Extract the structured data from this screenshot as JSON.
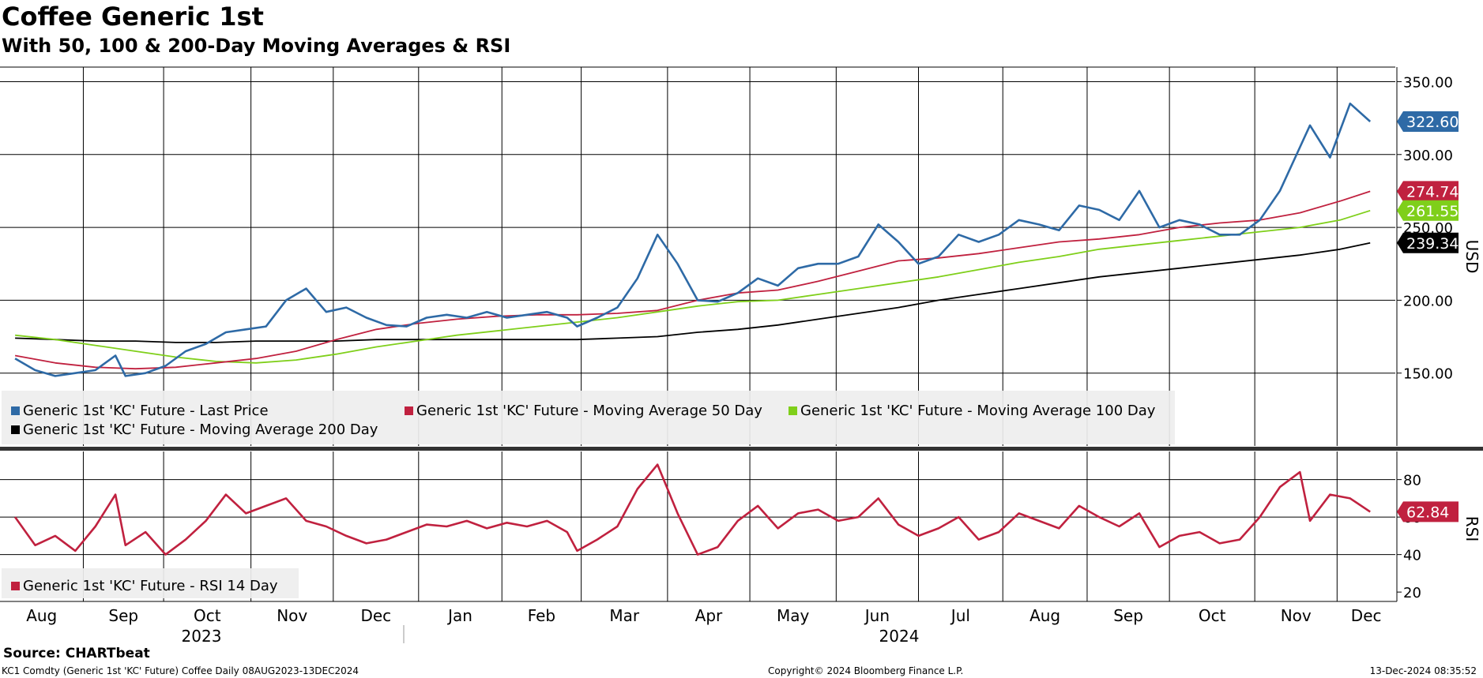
{
  "header": {
    "title": "Coffee Generic 1st",
    "subtitle": "With 50, 100 & 200-Day Moving Averages & RSI"
  },
  "footer": {
    "source": "Source: CHARTbeat",
    "ticker_line": "KC1 Comdty (Generic 1st 'KC' Future) Coffee  Daily 08AUG2023-13DEC2024",
    "copyright": "Copyright© 2024 Bloomberg Finance L.P.",
    "timestamp": "13-Dec-2024 08:35:52"
  },
  "colors": {
    "last_price": "#2e6aa6",
    "ma50": "#c0213f",
    "ma100": "#7fcf1a",
    "ma200": "#000000",
    "rsi": "#c0213f",
    "legend_bg": "#eeeeee"
  },
  "chart_data": [
    {
      "type": "line",
      "panel": "price",
      "ylabel": "USD",
      "ylim": [
        100,
        360
      ],
      "yticks": [
        "350.00",
        "300.00",
        "250.00",
        "200.00",
        "150.00"
      ],
      "ytick_values": [
        350,
        300,
        250,
        200,
        150
      ],
      "x_months": [
        "Aug",
        "Sep",
        "Oct",
        "Nov",
        "Dec",
        "Jan",
        "Feb",
        "Mar",
        "Apr",
        "May",
        "Jun",
        "Jul",
        "Aug",
        "Sep",
        "Oct",
        "Nov",
        "Dec"
      ],
      "x_years": [
        "2023",
        "2024"
      ],
      "grid": true,
      "series": [
        {
          "name": "Generic 1st 'KC' Future - Last Price",
          "color_key": "last_price",
          "last_label": "322.60",
          "x": [
            2023.6,
            2023.62,
            2023.64,
            2023.66,
            2023.68,
            2023.7,
            2023.71,
            2023.73,
            2023.75,
            2023.77,
            2023.79,
            2023.81,
            2023.83,
            2023.85,
            2023.87,
            2023.89,
            2023.91,
            2023.93,
            2023.95,
            2023.97,
            2023.99,
            2024.01,
            2024.03,
            2024.05,
            2024.07,
            2024.09,
            2024.11,
            2024.13,
            2024.15,
            2024.16,
            2024.18,
            2024.2,
            2024.22,
            2024.24,
            2024.26,
            2024.28,
            2024.3,
            2024.32,
            2024.34,
            2024.36,
            2024.38,
            2024.4,
            2024.42,
            2024.44,
            2024.46,
            2024.48,
            2024.5,
            2024.52,
            2024.54,
            2024.56,
            2024.58,
            2024.6,
            2024.62,
            2024.64,
            2024.66,
            2024.68,
            2024.7,
            2024.72,
            2024.74,
            2024.76,
            2024.78,
            2024.8,
            2024.82,
            2024.84,
            2024.86,
            2024.88,
            2024.89,
            2024.91,
            2024.93,
            2024.95
          ],
          "values": [
            160,
            152,
            148,
            150,
            152,
            162,
            148,
            150,
            155,
            165,
            170,
            178,
            180,
            182,
            200,
            208,
            192,
            195,
            188,
            183,
            182,
            188,
            190,
            188,
            192,
            188,
            190,
            192,
            188,
            182,
            188,
            195,
            215,
            245,
            225,
            200,
            199,
            205,
            215,
            210,
            222,
            225,
            225,
            230,
            252,
            240,
            225,
            230,
            245,
            240,
            245,
            255,
            252,
            248,
            265,
            262,
            255,
            275,
            250,
            255,
            252,
            245,
            245,
            255,
            275,
            305,
            320,
            298,
            335,
            322.6
          ]
        },
        {
          "name": "Generic 1st 'KC' Future - Moving Average 50 Day",
          "color_key": "ma50",
          "last_label": "274.74",
          "x": [
            2023.6,
            2023.64,
            2023.68,
            2023.72,
            2023.76,
            2023.8,
            2023.84,
            2023.88,
            2023.92,
            2023.96,
            2024.0,
            2024.04,
            2024.08,
            2024.12,
            2024.16,
            2024.2,
            2024.24,
            2024.28,
            2024.32,
            2024.36,
            2024.4,
            2024.44,
            2024.48,
            2024.52,
            2024.56,
            2024.6,
            2024.64,
            2024.68,
            2024.72,
            2024.76,
            2024.8,
            2024.84,
            2024.88,
            2024.92,
            2024.95
          ],
          "values": [
            162,
            157,
            154,
            153,
            154,
            157,
            160,
            165,
            173,
            180,
            184,
            187,
            189,
            190,
            190,
            191,
            193,
            200,
            205,
            207,
            213,
            220,
            227,
            229,
            232,
            236,
            240,
            242,
            245,
            250,
            253,
            255,
            260,
            268,
            274.74
          ]
        },
        {
          "name": "Generic 1st 'KC' Future - Moving Average 100 Day",
          "color_key": "ma100",
          "last_label": "261.55",
          "x": [
            2023.6,
            2023.64,
            2023.68,
            2023.72,
            2023.76,
            2023.8,
            2023.84,
            2023.88,
            2023.92,
            2023.96,
            2024.0,
            2024.04,
            2024.08,
            2024.12,
            2024.16,
            2024.2,
            2024.24,
            2024.28,
            2024.32,
            2024.36,
            2024.4,
            2024.44,
            2024.48,
            2024.52,
            2024.56,
            2024.6,
            2024.64,
            2024.68,
            2024.72,
            2024.76,
            2024.8,
            2024.84,
            2024.88,
            2024.92,
            2024.95
          ],
          "values": [
            176,
            173,
            169,
            165,
            161,
            158,
            157,
            159,
            163,
            168,
            172,
            176,
            179,
            182,
            185,
            188,
            192,
            196,
            199,
            200,
            204,
            208,
            212,
            216,
            221,
            226,
            230,
            235,
            238,
            241,
            244,
            247,
            250,
            255,
            261.55
          ]
        },
        {
          "name": "Generic 1st 'KC' Future - Moving Average 200 Day",
          "color_key": "ma200",
          "last_label": "239.34",
          "x": [
            2023.6,
            2023.64,
            2023.68,
            2023.72,
            2023.76,
            2023.8,
            2023.84,
            2023.88,
            2023.92,
            2023.96,
            2024.0,
            2024.04,
            2024.08,
            2024.12,
            2024.16,
            2024.2,
            2024.24,
            2024.28,
            2024.32,
            2024.36,
            2024.4,
            2024.44,
            2024.48,
            2024.52,
            2024.56,
            2024.6,
            2024.64,
            2024.68,
            2024.72,
            2024.76,
            2024.8,
            2024.84,
            2024.88,
            2024.92,
            2024.95
          ],
          "values": [
            174,
            173,
            172,
            172,
            171,
            171,
            172,
            172,
            172,
            173,
            173,
            173,
            173,
            173,
            173,
            174,
            175,
            178,
            180,
            183,
            187,
            191,
            195,
            200,
            204,
            208,
            212,
            216,
            219,
            222,
            225,
            228,
            231,
            235,
            239.34
          ]
        }
      ]
    },
    {
      "type": "line",
      "panel": "rsi",
      "ylabel": "RSI",
      "ylim": [
        15,
        95
      ],
      "yticks": [
        "80",
        "60",
        "40",
        "20"
      ],
      "ytick_values": [
        80,
        60,
        40,
        20
      ],
      "grid": true,
      "series": [
        {
          "name": "Generic 1st 'KC' Future - RSI 14 Day",
          "color_key": "rsi",
          "last_label": "62.84",
          "x": [
            2023.6,
            2023.62,
            2023.64,
            2023.66,
            2023.68,
            2023.7,
            2023.71,
            2023.73,
            2023.75,
            2023.77,
            2023.79,
            2023.81,
            2023.83,
            2023.85,
            2023.87,
            2023.89,
            2023.91,
            2023.93,
            2023.95,
            2023.97,
            2023.99,
            2024.01,
            2024.03,
            2024.05,
            2024.07,
            2024.09,
            2024.11,
            2024.13,
            2024.15,
            2024.16,
            2024.18,
            2024.2,
            2024.22,
            2024.24,
            2024.26,
            2024.28,
            2024.3,
            2024.32,
            2024.34,
            2024.36,
            2024.38,
            2024.4,
            2024.42,
            2024.44,
            2024.46,
            2024.48,
            2024.5,
            2024.52,
            2024.54,
            2024.56,
            2024.58,
            2024.6,
            2024.62,
            2024.64,
            2024.66,
            2024.68,
            2024.7,
            2024.72,
            2024.74,
            2024.76,
            2024.78,
            2024.8,
            2024.82,
            2024.84,
            2024.86,
            2024.88,
            2024.89,
            2024.91,
            2024.93,
            2024.95
          ],
          "values": [
            60,
            45,
            50,
            42,
            55,
            72,
            45,
            52,
            40,
            48,
            58,
            72,
            62,
            66,
            70,
            58,
            55,
            50,
            46,
            48,
            52,
            56,
            55,
            58,
            54,
            57,
            55,
            58,
            52,
            42,
            48,
            55,
            75,
            88,
            62,
            40,
            44,
            58,
            66,
            54,
            62,
            64,
            58,
            60,
            70,
            56,
            50,
            54,
            60,
            48,
            52,
            62,
            58,
            54,
            66,
            60,
            55,
            62,
            44,
            50,
            52,
            46,
            48,
            60,
            76,
            84,
            58,
            72,
            70,
            62.84
          ]
        }
      ]
    }
  ]
}
